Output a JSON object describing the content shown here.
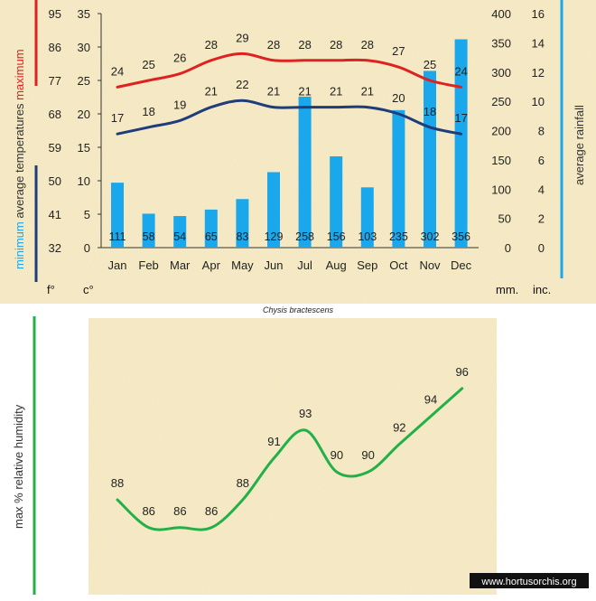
{
  "chart_data": [
    {
      "type": "line+bar",
      "title": "Chysis bractescens",
      "categories": [
        "Jan",
        "Feb",
        "Mar",
        "Apr",
        "May",
        "Jun",
        "Jul",
        "Aug",
        "Sep",
        "Oct",
        "Nov",
        "Dec"
      ],
      "series": [
        {
          "name": "maximum",
          "values": [
            24,
            25,
            26,
            28,
            29,
            28,
            28,
            28,
            28,
            27,
            25,
            24
          ],
          "color": "#dd2222"
        },
        {
          "name": "minimum",
          "values": [
            17,
            18,
            19,
            21,
            22,
            21,
            21,
            21,
            21,
            20,
            18,
            17
          ],
          "color": "#1f3d7a"
        },
        {
          "name": "average rainfall",
          "values": [
            111,
            58,
            54,
            65,
            83,
            129,
            258,
            156,
            103,
            235,
            302,
            356
          ],
          "color": "#1aa7ec"
        }
      ],
      "axes": {
        "fahrenheit": {
          "ticks": [
            "95",
            "86",
            "77",
            "68",
            "59",
            "50",
            "41",
            "32"
          ],
          "unit": "f°"
        },
        "celsius": {
          "ticks": [
            "35",
            "30",
            "25",
            "20",
            "15",
            "10",
            "5",
            "0"
          ],
          "unit": "c°",
          "ylim": [
            0,
            35
          ]
        },
        "mm": {
          "ticks": [
            "400",
            "350",
            "300",
            "250",
            "200",
            "150",
            "100",
            "50",
            "0"
          ],
          "unit": "mm.",
          "ylim": [
            0,
            400
          ]
        },
        "inches": {
          "ticks": [
            "16",
            "14",
            "12",
            "10",
            "8",
            "6",
            "4",
            "2",
            "0"
          ],
          "unit": "inc."
        }
      },
      "ylabel_left": {
        "minimum": "minimum",
        "average": "average",
        "temperatures": "temperatures",
        "maximum": "maximum"
      },
      "ylabel_right": "average rainfall"
    },
    {
      "type": "line",
      "categories": [
        "Jan",
        "Feb",
        "Mar",
        "Apr",
        "May",
        "Jun",
        "Jul",
        "Aug",
        "Sep",
        "Oct",
        "Nov",
        "Dec"
      ],
      "series": [
        {
          "name": "max % relative humidity",
          "values": [
            88,
            86,
            86,
            86,
            88,
            91,
            93,
            90,
            90,
            92,
            94,
            96
          ],
          "color": "#22b04a"
        }
      ],
      "ylabel": "max %  relative humidity"
    }
  ],
  "watermark": "www.hortusorchis.org",
  "colors": {
    "panel": "#f7ecc8",
    "max": "#dd2222",
    "min": "#1f3d7a",
    "rain": "#1aa7ec",
    "humidity": "#22b04a"
  }
}
